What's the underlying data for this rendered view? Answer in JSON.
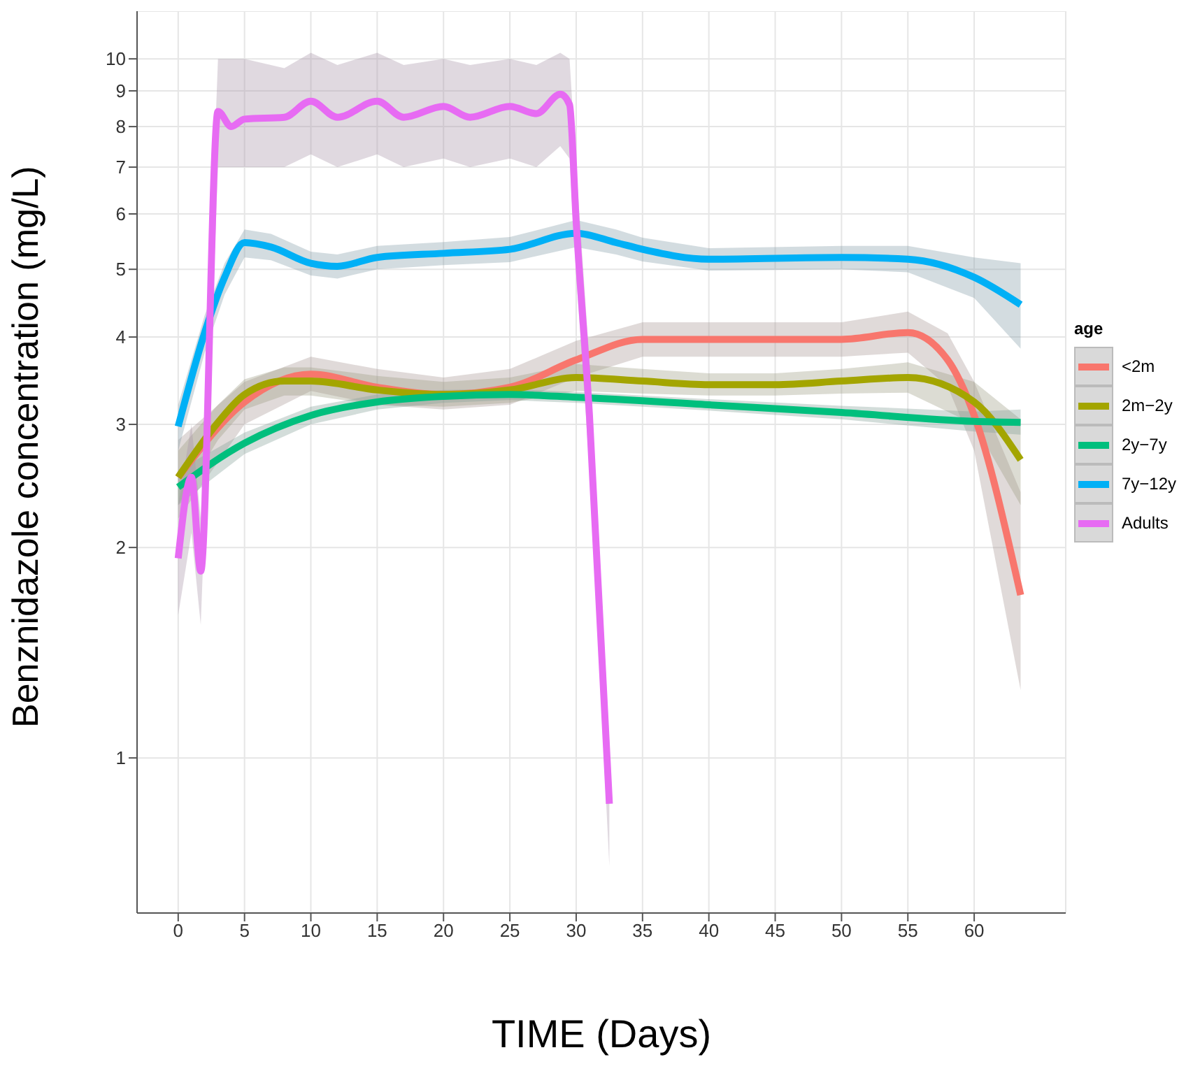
{
  "chart_data": {
    "type": "line",
    "xlabel": "TIME (Days)",
    "ylabel": "Benznidazole concentration (mg/L)",
    "legend_title": "age",
    "legend": "right",
    "grid": true,
    "log": "y",
    "xlim": [
      -3.1,
      66.9
    ],
    "xticks": [
      0,
      5,
      10,
      15,
      20,
      25,
      30,
      35,
      40,
      45,
      50,
      55,
      60
    ],
    "ylim": [
      0.6,
      11.7
    ],
    "yticks": [
      1,
      2,
      3,
      4,
      5,
      6,
      7,
      8,
      9,
      10
    ],
    "series": [
      {
        "name": "<2m",
        "color": "#f8766d",
        "x": [
          0,
          5,
          10,
          15,
          20,
          25,
          30,
          35,
          40,
          50,
          55,
          58,
          60,
          63.5
        ],
        "values": [
          2.52,
          3.23,
          3.54,
          3.39,
          3.31,
          3.39,
          3.71,
          3.97,
          3.97,
          3.97,
          4.06,
          3.71,
          3.09,
          1.71
        ],
        "lower": [
          2.2,
          3.0,
          3.35,
          3.2,
          3.15,
          3.2,
          3.5,
          3.75,
          3.75,
          3.75,
          3.8,
          3.4,
          2.75,
          1.25
        ],
        "upper": [
          2.85,
          3.45,
          3.75,
          3.6,
          3.5,
          3.6,
          3.95,
          4.2,
          4.2,
          4.2,
          4.35,
          4.05,
          3.45,
          2.4
        ]
      },
      {
        "name": "2m−2y",
        "color": "#a3a500",
        "x": [
          0,
          3,
          5,
          8,
          10,
          15,
          20,
          25,
          30,
          35,
          40,
          45,
          50,
          55,
          60,
          63.5
        ],
        "values": [
          2.52,
          3.02,
          3.31,
          3.46,
          3.46,
          3.36,
          3.31,
          3.36,
          3.5,
          3.46,
          3.42,
          3.42,
          3.46,
          3.5,
          3.23,
          2.67
        ],
        "lower": [
          2.3,
          2.85,
          3.15,
          3.3,
          3.3,
          3.2,
          3.18,
          3.22,
          3.35,
          3.32,
          3.3,
          3.3,
          3.32,
          3.33,
          3.0,
          2.3
        ],
        "upper": [
          2.75,
          3.2,
          3.48,
          3.62,
          3.62,
          3.52,
          3.45,
          3.5,
          3.66,
          3.6,
          3.55,
          3.55,
          3.6,
          3.68,
          3.45,
          3.05
        ]
      },
      {
        "name": "2y−7y",
        "color": "#00bf7d",
        "x": [
          0,
          5,
          10,
          15,
          20,
          25,
          30,
          40,
          50,
          60,
          63.5
        ],
        "values": [
          2.44,
          2.82,
          3.09,
          3.23,
          3.29,
          3.31,
          3.28,
          3.2,
          3.12,
          3.03,
          3.02
        ],
        "lower": [
          2.3,
          2.72,
          3.0,
          3.15,
          3.22,
          3.25,
          3.22,
          3.14,
          3.05,
          2.93,
          2.9
        ],
        "upper": [
          2.58,
          2.92,
          3.18,
          3.31,
          3.36,
          3.37,
          3.34,
          3.26,
          3.19,
          3.13,
          3.15
        ]
      },
      {
        "name": "7y−12y",
        "color": "#00b0f6",
        "x": [
          0,
          2,
          3.5,
          5,
          7,
          10,
          12,
          15,
          20,
          25,
          30,
          33,
          35,
          40,
          50,
          55,
          60,
          63.5
        ],
        "values": [
          2.98,
          4.06,
          4.87,
          5.46,
          5.38,
          5.1,
          5.05,
          5.2,
          5.27,
          5.34,
          5.63,
          5.46,
          5.34,
          5.17,
          5.2,
          5.17,
          4.87,
          4.45
        ],
        "lower": [
          2.75,
          3.8,
          4.6,
          5.2,
          5.15,
          4.9,
          4.85,
          5.0,
          5.07,
          5.12,
          5.38,
          5.25,
          5.13,
          4.98,
          5.0,
          4.95,
          4.55,
          3.85
        ],
        "upper": [
          3.2,
          4.3,
          5.1,
          5.7,
          5.62,
          5.3,
          5.25,
          5.4,
          5.47,
          5.56,
          5.88,
          5.7,
          5.55,
          5.36,
          5.4,
          5.4,
          5.2,
          5.1
        ]
      },
      {
        "name": "Adults",
        "color": "#e76bf3",
        "x": [
          0,
          1,
          1.7,
          3,
          4,
          5,
          8,
          10,
          12,
          15,
          17,
          20,
          22,
          25,
          27,
          28.8,
          29.5,
          30,
          31,
          32.5
        ],
        "values": [
          1.93,
          2.52,
          1.85,
          8.41,
          8.0,
          8.2,
          8.25,
          8.7,
          8.25,
          8.7,
          8.25,
          8.55,
          8.25,
          8.55,
          8.35,
          8.9,
          8.6,
          5.84,
          3.09,
          0.86
        ],
        "lower": [
          1.6,
          2.1,
          1.55,
          7.0,
          7.0,
          7.0,
          7.0,
          7.3,
          7.0,
          7.3,
          7.0,
          7.2,
          7.0,
          7.2,
          7.0,
          7.5,
          7.2,
          4.9,
          2.6,
          0.7
        ],
        "upper": [
          2.3,
          3.0,
          2.2,
          10.0,
          10.0,
          10.0,
          9.7,
          10.2,
          9.8,
          10.2,
          9.8,
          10.0,
          9.8,
          10.0,
          9.8,
          10.2,
          10.0,
          7.0,
          3.7,
          1.05
        ]
      }
    ]
  }
}
